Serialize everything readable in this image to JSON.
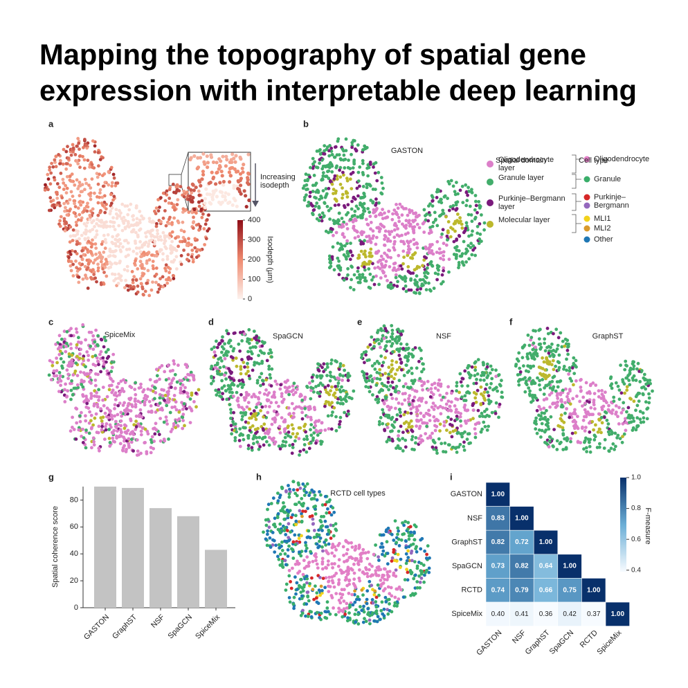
{
  "title": [
    "Mapping the topography of spatial gene",
    "expression with interpretable deep learning"
  ],
  "panel_a": {
    "label": "a",
    "annotation": "Increasing isodepth",
    "colorbar": {
      "label": "Isodepth (µm)",
      "colors": [
        "#fdf2ee",
        "#ef8a6f",
        "#8e0c16"
      ],
      "lim": [
        0,
        400
      ],
      "ticks": [
        0,
        100,
        200,
        300,
        400
      ]
    }
  },
  "panel_b": {
    "label": "b",
    "title": "GASTON",
    "domain_legend": {
      "title": "Spatial domain",
      "items": [
        {
          "name": "Oligodendrocyte layer",
          "color": "#dc7fc9"
        },
        {
          "name": "Granule layer",
          "color": "#42ad6b"
        },
        {
          "name": "Purkinje–Bergmann layer",
          "color": "#7a1a7c"
        },
        {
          "name": "Molecular layer",
          "color": "#bcb82c"
        }
      ]
    },
    "cell_legend": {
      "title": "Cell type",
      "items": [
        {
          "name": "Oligodendrocyte",
          "colors": [
            "#e27fc6"
          ]
        },
        {
          "name": "Granule",
          "colors": [
            "#3aae6a"
          ]
        },
        {
          "name": "Purkinje–Bergmann",
          "colors": [
            "#d62728",
            "#9467bd"
          ]
        },
        {
          "name": "MLI1",
          "colors": [
            "#f2d21b"
          ]
        },
        {
          "name": "MLI2",
          "colors": [
            "#d99a2b"
          ]
        },
        {
          "name": "Other",
          "colors": [
            "#1f77b4"
          ]
        }
      ]
    }
  },
  "panel_c": {
    "label": "c",
    "title": "SpiceMix"
  },
  "panel_d": {
    "label": "d",
    "title": "SpaGCN"
  },
  "panel_e": {
    "label": "e",
    "title": "NSF"
  },
  "panel_f": {
    "label": "f",
    "title": "GraphST"
  },
  "panel_g": {
    "label": "g"
  },
  "panel_h": {
    "label": "h",
    "title": "RCTD cell types"
  },
  "panel_i": {
    "label": "i"
  },
  "chart_data": [
    {
      "type": "bar",
      "ylabel": "Spatial coherence score",
      "categories": [
        "GASTON",
        "GraphST",
        "NSF",
        "SpaGCN",
        "SpiceMix"
      ],
      "values": [
        90,
        89,
        74,
        68,
        43
      ],
      "color": "#c3c3c3",
      "ylim": [
        0,
        90
      ],
      "yticks": [
        0,
        20,
        40,
        60,
        80
      ]
    },
    {
      "type": "heatmap",
      "colorbar_label": "F-measure",
      "categories": [
        "GASTON",
        "NSF",
        "GraphST",
        "SpaGCN",
        "RCTD",
        "SpiceMix"
      ],
      "values": [
        [
          1.0
        ],
        [
          0.83,
          1.0
        ],
        [
          0.82,
          0.72,
          1.0
        ],
        [
          0.73,
          0.82,
          0.64,
          1.0
        ],
        [
          0.74,
          0.79,
          0.66,
          0.75,
          1.0
        ],
        [
          0.4,
          0.41,
          0.36,
          0.42,
          0.37,
          1.0
        ]
      ],
      "value_labels": [
        [
          "1.00"
        ],
        [
          "0.83",
          "1.00"
        ],
        [
          "0.82",
          "0.72",
          "1.00"
        ],
        [
          "0.73",
          "0.82",
          "0.64",
          "1.00"
        ],
        [
          "0.74",
          "0.79",
          "0.66",
          "0.75",
          "1.00"
        ],
        [
          "0.40",
          "0.41",
          "0.36",
          "0.42",
          "0.37",
          "1.00"
        ]
      ],
      "colors": [
        "#f7fbff",
        "#6baed6",
        "#08306b"
      ],
      "zlim": [
        0.39,
        1.0
      ],
      "zticks": [
        0.4,
        0.6,
        0.8,
        {
          "value": 1,
          "label": "1.0"
        }
      ]
    }
  ]
}
